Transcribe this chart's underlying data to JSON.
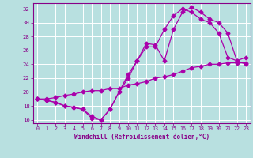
{
  "xlabel": "Windchill (Refroidissement éolien,°C)",
  "xlim": [
    -0.5,
    23.5
  ],
  "ylim": [
    15.5,
    32.8
  ],
  "yticks": [
    16,
    18,
    20,
    22,
    24,
    26,
    28,
    30,
    32
  ],
  "xticks": [
    0,
    1,
    2,
    3,
    4,
    5,
    6,
    7,
    8,
    9,
    10,
    11,
    12,
    13,
    14,
    15,
    16,
    17,
    18,
    19,
    20,
    21,
    22,
    23
  ],
  "bg_color": "#b8e0e0",
  "grid_color": "#ffffff",
  "line_color": "#aa00aa",
  "line1_y": [
    19.0,
    18.8,
    18.5,
    18.0,
    17.8,
    17.5,
    16.2,
    16.0,
    17.5,
    20.0,
    22.5,
    24.5,
    27.0,
    26.8,
    24.5,
    29.0,
    31.5,
    32.2,
    31.5,
    30.5,
    30.0,
    28.5,
    24.5,
    24.0
  ],
  "line2_y": [
    19.0,
    18.8,
    18.5,
    18.0,
    17.8,
    17.5,
    16.5,
    16.0,
    17.5,
    20.0,
    22.0,
    24.5,
    26.5,
    26.5,
    29.0,
    31.0,
    32.0,
    31.5,
    30.5,
    30.0,
    28.5,
    25.0,
    24.5,
    25.0
  ],
  "line3_y": [
    19.0,
    19.0,
    19.2,
    19.5,
    19.7,
    20.0,
    20.2,
    20.2,
    20.5,
    20.5,
    21.0,
    21.2,
    21.5,
    22.0,
    22.2,
    22.5,
    23.0,
    23.5,
    23.7,
    24.0,
    24.0,
    24.2,
    24.2,
    24.2
  ],
  "figsize": [
    3.2,
    2.0
  ],
  "dpi": 100
}
